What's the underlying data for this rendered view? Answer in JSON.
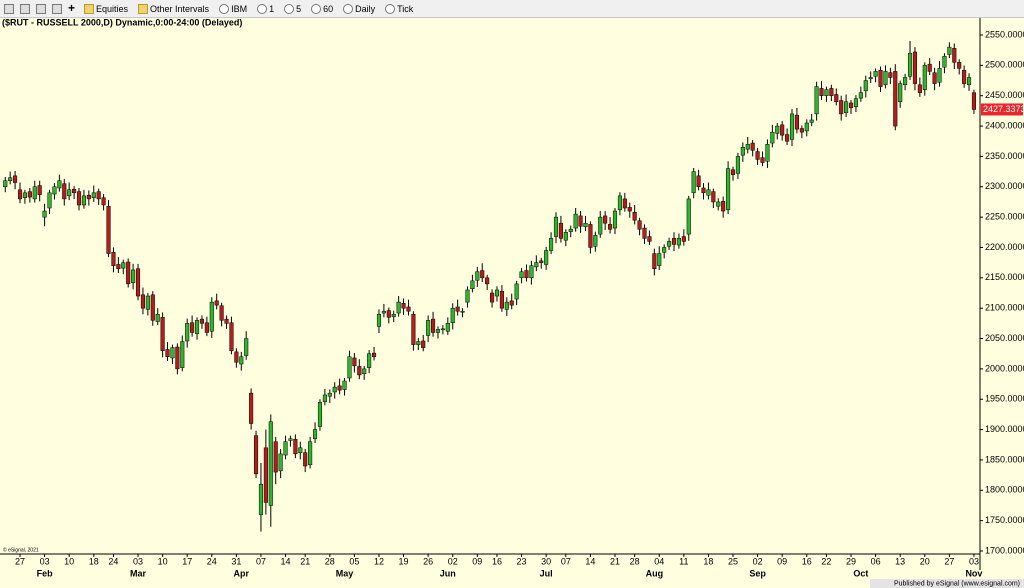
{
  "toolbar": {
    "items": [
      "Equities",
      "Other Intervals",
      "IBM",
      "1",
      "5",
      "60",
      "Daily",
      "Tick"
    ]
  },
  "footer": {
    "copyright": "© eSignal, 2021",
    "published": "Published by eSignal (www.esignal.com)"
  },
  "chart_data": {
    "type": "candlestick",
    "title": "($RUT - RUSSELL 2000,D) Dynamic,0:00-24:00 (Delayed)",
    "up_color": "#2db52d",
    "down_color": "#b51c1c",
    "last_price_color": "#e8262b",
    "ylim": [
      1700,
      2550
    ],
    "yticks": [
      {
        "value": 1700,
        "label": "1700.000000"
      },
      {
        "value": 1750,
        "label": "1750.000000"
      },
      {
        "value": 1800,
        "label": "1800.000000"
      },
      {
        "value": 1850,
        "label": "1850.000000"
      },
      {
        "value": 1900,
        "label": "1900.000000"
      },
      {
        "value": 1950,
        "label": "1950.000000"
      },
      {
        "value": 2000,
        "label": "2000.000000"
      },
      {
        "value": 2050,
        "label": "2050.000000"
      },
      {
        "value": 2100,
        "label": "2100.000000"
      },
      {
        "value": 2150,
        "label": "2150.000000"
      },
      {
        "value": 2200,
        "label": "2200.000000"
      },
      {
        "value": 2250,
        "label": "2250.000000"
      },
      {
        "value": 2300,
        "label": "2300.000000"
      },
      {
        "value": 2350,
        "label": "2350.000000"
      },
      {
        "value": 2400,
        "label": "2400.000000"
      },
      {
        "value": 2450,
        "label": "2450.000000"
      },
      {
        "value": 2500,
        "label": "2500.000000"
      },
      {
        "value": 2550,
        "label": "2550.000000"
      }
    ],
    "last_price": 2427.3373,
    "categories": [
      null,
      null,
      null,
      "27",
      null,
      null,
      null,
      null,
      "03",
      null,
      null,
      null,
      null,
      "10",
      null,
      null,
      null,
      null,
      "18",
      null,
      null,
      null,
      "24",
      null,
      null,
      null,
      null,
      "03",
      null,
      null,
      null,
      null,
      "10",
      null,
      null,
      null,
      null,
      "17",
      null,
      null,
      null,
      null,
      "24",
      null,
      null,
      null,
      null,
      "31",
      null,
      null,
      null,
      null,
      "07",
      null,
      null,
      null,
      null,
      "14",
      null,
      null,
      null,
      "21",
      null,
      null,
      null,
      null,
      "28",
      null,
      null,
      null,
      null,
      "05",
      null,
      null,
      null,
      null,
      "12",
      null,
      null,
      null,
      null,
      "19",
      null,
      null,
      null,
      null,
      "26",
      null,
      null,
      null,
      null,
      "02",
      null,
      null,
      null,
      null,
      "09",
      null,
      null,
      null,
      "16",
      null,
      null,
      null,
      null,
      "23",
      null,
      null,
      null,
      null,
      "30",
      null,
      null,
      null,
      "07",
      null,
      null,
      null,
      null,
      "14",
      null,
      null,
      null,
      null,
      "21",
      null,
      null,
      null,
      "28",
      null,
      null,
      null,
      null,
      "04",
      null,
      null,
      null,
      null,
      "11",
      null,
      null,
      null,
      null,
      "18",
      null,
      null,
      null,
      null,
      "25",
      null,
      null,
      null,
      null,
      "02",
      null,
      null,
      null,
      null,
      "09",
      null,
      null,
      null,
      null,
      "16",
      null,
      null,
      null,
      "22",
      null,
      null,
      null,
      null,
      "29",
      null,
      null,
      null,
      null,
      "06",
      null,
      null,
      null,
      null,
      "13",
      null,
      null,
      null,
      null,
      "20",
      null,
      null,
      null,
      null,
      "27",
      null,
      null,
      null,
      null,
      "03"
    ],
    "months": [
      null,
      null,
      null,
      null,
      null,
      null,
      null,
      null,
      "Feb",
      null,
      null,
      null,
      null,
      null,
      null,
      null,
      null,
      null,
      null,
      null,
      null,
      null,
      null,
      null,
      null,
      null,
      null,
      "Mar",
      null,
      null,
      null,
      null,
      null,
      null,
      null,
      null,
      null,
      null,
      null,
      null,
      null,
      null,
      null,
      null,
      null,
      null,
      null,
      null,
      "Apr",
      null,
      null,
      null,
      null,
      null,
      null,
      null,
      null,
      null,
      null,
      null,
      null,
      null,
      null,
      null,
      null,
      null,
      null,
      null,
      null,
      "May",
      null,
      null,
      null,
      null,
      null,
      null,
      null,
      null,
      null,
      null,
      null,
      null,
      null,
      null,
      null,
      null,
      null,
      null,
      null,
      null,
      "Jun",
      null,
      null,
      null,
      null,
      null,
      null,
      null,
      null,
      null,
      null,
      null,
      null,
      null,
      null,
      null,
      null,
      null,
      null,
      null,
      "Jul",
      null,
      null,
      null,
      null,
      null,
      null,
      null,
      null,
      null,
      null,
      null,
      null,
      null,
      null,
      null,
      null,
      null,
      null,
      null,
      null,
      null,
      "Aug",
      null,
      null,
      null,
      null,
      null,
      null,
      null,
      null,
      null,
      null,
      null,
      null,
      null,
      null,
      null,
      null,
      null,
      null,
      null,
      null,
      "Sep",
      null,
      null,
      null,
      null,
      null,
      null,
      null,
      null,
      null,
      null,
      null,
      null,
      null,
      null,
      null,
      null,
      null,
      null,
      null,
      null,
      "Oct",
      null,
      null,
      null,
      null,
      null,
      null,
      null,
      null,
      null,
      null,
      null,
      null,
      null,
      null,
      null,
      null,
      null,
      null,
      null,
      null,
      null,
      null,
      "Nov"
    ],
    "open": [
      2300,
      2310,
      2318,
      2295,
      2282,
      2292,
      2280,
      2302,
      2250,
      2265,
      2288,
      2298,
      2305,
      2285,
      2296,
      2292,
      2270,
      2286,
      2282,
      2292,
      2282,
      2268,
      2192,
      2172,
      2166,
      2176,
      2142,
      2165,
      2122,
      2098,
      2122,
      2078,
      2085,
      2032,
      2018,
      2036,
      2002,
      2046,
      2076,
      2058,
      2082,
      2076,
      2062,
      2112,
      2104,
      2082,
      2076,
      2028,
      2008,
      2022,
      1960,
      1890,
      1760,
      1870,
      1775,
      1880,
      1832,
      1858,
      1882,
      1884,
      1862,
      1862,
      1842,
      1885,
      1905,
      1946,
      1955,
      1962,
      1972,
      1966,
      1985,
      2018,
      2004,
      1992,
      2002,
      2026,
      2070,
      2092,
      2096,
      2086,
      2092,
      2108,
      2102,
      2090,
      2040,
      2046,
      2055,
      2082,
      2060,
      2066,
      2062,
      2076,
      2102,
      2094,
      2110,
      2132,
      2146,
      2162,
      2150,
      2125,
      2120,
      2128,
      2098,
      2112,
      2115,
      2150,
      2162,
      2150,
      2168,
      2178,
      2172,
      2195,
      2218,
      2240,
      2212,
      2226,
      2232,
      2252,
      2234,
      2238,
      2202,
      2222,
      2252,
      2238,
      2232,
      2262,
      2280,
      2266,
      2258,
      2244,
      2232,
      2218,
      2190,
      2170,
      2192,
      2202,
      2215,
      2204,
      2218,
      2222,
      2290,
      2318,
      2298,
      2286,
      2292,
      2268,
      2276,
      2262,
      2328,
      2322,
      2352,
      2362,
      2372,
      2358,
      2348,
      2342,
      2372,
      2388,
      2402,
      2386,
      2378,
      2418,
      2396,
      2392,
      2406,
      2420,
      2462,
      2450,
      2462,
      2452,
      2442,
      2422,
      2438,
      2432,
      2446,
      2458,
      2478,
      2482,
      2492,
      2468,
      2488,
      2490,
      2440,
      2468,
      2482,
      2522,
      2468,
      2460,
      2502,
      2488,
      2472,
      2497,
      2518,
      2528,
      2505,
      2492,
      2468,
      2455
    ],
    "high": [
      2316,
      2325,
      2326,
      2307,
      2295,
      2298,
      2310,
      2310,
      2272,
      2295,
      2306,
      2320,
      2313,
      2307,
      2301,
      2298,
      2295,
      2294,
      2302,
      2297,
      2288,
      2278,
      2200,
      2184,
      2180,
      2182,
      2173,
      2173,
      2134,
      2125,
      2128,
      2100,
      2093,
      2044,
      2040,
      2042,
      2055,
      2083,
      2088,
      2085,
      2088,
      2086,
      2118,
      2124,
      2109,
      2088,
      2086,
      2034,
      2028,
      2062,
      1968,
      1898,
      1845,
      1900,
      1925,
      1888,
      1868,
      1890,
      1890,
      1892,
      1880,
      1868,
      1888,
      1912,
      1950,
      1967,
      1966,
      1978,
      1984,
      1985,
      2030,
      2026,
      2016,
      2005,
      2031,
      2036,
      2098,
      2107,
      2101,
      2096,
      2120,
      2116,
      2114,
      2095,
      2051,
      2056,
      2088,
      2094,
      2070,
      2072,
      2085,
      2108,
      2114,
      2100,
      2136,
      2155,
      2168,
      2174,
      2155,
      2131,
      2136,
      2138,
      2118,
      2124,
      2145,
      2166,
      2172,
      2178,
      2187,
      2183,
      2201,
      2225,
      2258,
      2252,
      2230,
      2236,
      2265,
      2260,
      2252,
      2243,
      2226,
      2260,
      2260,
      2250,
      2265,
      2291,
      2290,
      2274,
      2270,
      2249,
      2238,
      2228,
      2198,
      2202,
      2205,
      2216,
      2225,
      2223,
      2230,
      2285,
      2331,
      2328,
      2306,
      2307,
      2297,
      2281,
      2284,
      2342,
      2333,
      2356,
      2373,
      2382,
      2377,
      2364,
      2358,
      2378,
      2402,
      2405,
      2408,
      2396,
      2428,
      2430,
      2401,
      2411,
      2420,
      2473,
      2474,
      2465,
      2468,
      2462,
      2450,
      2452,
      2443,
      2451,
      2465,
      2483,
      2490,
      2495,
      2498,
      2500,
      2496,
      2502,
      2475,
      2486,
      2540,
      2530,
      2480,
      2505,
      2512,
      2496,
      2507,
      2520,
      2538,
      2536,
      2510,
      2500,
      2487,
      2460
    ],
    "low": [
      2291,
      2304,
      2296,
      2273,
      2272,
      2274,
      2274,
      2276,
      2235,
      2255,
      2279,
      2292,
      2269,
      2278,
      2280,
      2261,
      2264,
      2269,
      2275,
      2270,
      2261,
      2184,
      2159,
      2158,
      2156,
      2134,
      2131,
      2113,
      2090,
      2088,
      2071,
      2072,
      2019,
      2013,
      2008,
      1991,
      1996,
      2035,
      2053,
      2048,
      2066,
      2054,
      2051,
      2098,
      2070,
      2066,
      2024,
      2002,
      1997,
      2015,
      1900,
      1820,
      1732,
      1760,
      1740,
      1810,
      1820,
      1851,
      1872,
      1853,
      1851,
      1830,
      1836,
      1878,
      1898,
      1940,
      1944,
      1951,
      1958,
      1956,
      1979,
      1994,
      1983,
      1982,
      1993,
      2014,
      2059,
      2085,
      2075,
      2077,
      2086,
      2089,
      2088,
      2030,
      2031,
      2029,
      2044,
      2053,
      2050,
      2057,
      2056,
      2065,
      2088,
      2085,
      2101,
      2126,
      2135,
      2143,
      2130,
      2101,
      2111,
      2094,
      2087,
      2098,
      2105,
      2141,
      2144,
      2139,
      2161,
      2165,
      2163,
      2189,
      2207,
      2208,
      2202,
      2217,
      2226,
      2224,
      2227,
      2190,
      2193,
      2216,
      2229,
      2223,
      2222,
      2253,
      2259,
      2249,
      2238,
      2220,
      2206,
      2204,
      2154,
      2163,
      2182,
      2196,
      2194,
      2198,
      2203,
      2211,
      2281,
      2294,
      2279,
      2279,
      2265,
      2261,
      2249,
      2255,
      2310,
      2313,
      2341,
      2355,
      2350,
      2336,
      2334,
      2331,
      2365,
      2378,
      2376,
      2369,
      2367,
      2388,
      2380,
      2383,
      2400,
      2409,
      2443,
      2440,
      2441,
      2434,
      2409,
      2415,
      2420,
      2423,
      2440,
      2447,
      2471,
      2472,
      2456,
      2462,
      2469,
      2393,
      2430,
      2459,
      2476,
      2459,
      2448,
      2450,
      2484,
      2459,
      2465,
      2487,
      2512,
      2494,
      2485,
      2463,
      2458,
      2420
    ],
    "close": [
      2310,
      2315,
      2307,
      2280,
      2290,
      2283,
      2300,
      2287,
      2260,
      2290,
      2300,
      2310,
      2280,
      2295,
      2290,
      2270,
      2285,
      2280,
      2290,
      2280,
      2270,
      2190,
      2170,
      2165,
      2175,
      2140,
      2163,
      2120,
      2100,
      2120,
      2080,
      2090,
      2030,
      2020,
      2035,
      2000,
      2045,
      2075,
      2060,
      2080,
      2075,
      2060,
      2110,
      2105,
      2080,
      2075,
      2030,
      2011,
      2020,
      2050,
      1910,
      1827,
      1810,
      1780,
      1913,
      1830,
      1860,
      1880,
      1885,
      1860,
      1870,
      1840,
      1880,
      1900,
      1945,
      1957,
      1960,
      1970,
      1965,
      1980,
      2020,
      2005,
      1990,
      2000,
      2025,
      2020,
      2090,
      2095,
      2085,
      2090,
      2110,
      2100,
      2095,
      2040,
      2045,
      2035,
      2080,
      2060,
      2065,
      2066,
      2075,
      2100,
      2095,
      2095,
      2130,
      2145,
      2160,
      2150,
      2140,
      2110,
      2130,
      2100,
      2110,
      2105,
      2140,
      2160,
      2150,
      2170,
      2175,
      2175,
      2195,
      2215,
      2250,
      2215,
      2225,
      2230,
      2255,
      2235,
      2240,
      2200,
      2220,
      2250,
      2240,
      2230,
      2260,
      2285,
      2265,
      2260,
      2245,
      2230,
      2215,
      2210,
      2165,
      2190,
      2200,
      2210,
      2205,
      2215,
      2210,
      2280,
      2325,
      2300,
      2290,
      2295,
      2275,
      2275,
      2260,
      2330,
      2320,
      2350,
      2365,
      2370,
      2360,
      2345,
      2340,
      2370,
      2390,
      2400,
      2385,
      2375,
      2420,
      2395,
      2390,
      2405,
      2410,
      2465,
      2450,
      2460,
      2450,
      2440,
      2420,
      2440,
      2430,
      2445,
      2455,
      2475,
      2480,
      2490,
      2465,
      2490,
      2480,
      2400,
      2470,
      2480,
      2520,
      2470,
      2455,
      2500,
      2490,
      2470,
      2495,
      2515,
      2530,
      2505,
      2495,
      2470,
      2480,
      2427.3373
    ]
  }
}
